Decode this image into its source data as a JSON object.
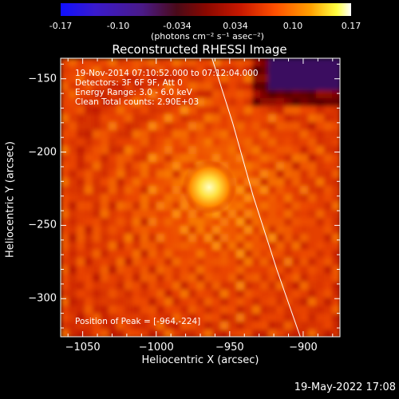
{
  "colorbar": {
    "ticks": [
      "-0.17",
      "-0.10",
      "-0.034",
      "0.034",
      "0.10",
      "0.17"
    ],
    "units": "(photons cm⁻² s⁻¹ asec⁻²)"
  },
  "chart_data": {
    "type": "heatmap",
    "title": "Reconstructed RHESSI Image",
    "xlabel": "Heliocentric X (arcsec)",
    "ylabel": "Heliocentric Y (arcsec)",
    "xlim": [
      -1065,
      -875
    ],
    "ylim": [
      -326,
      -136
    ],
    "xticks": [
      -1050,
      -1000,
      -950,
      -900
    ],
    "yticks": [
      -150,
      -200,
      -250,
      -300
    ],
    "xtick_labels": [
      "−1050",
      "−1000",
      "−950",
      "−900"
    ],
    "ytick_labels": [
      "−150",
      "−200",
      "−250",
      "−300"
    ],
    "color_range": [
      -0.17,
      0.17
    ],
    "peak": {
      "x": -964,
      "y": -224
    },
    "limb_line": [
      [
        -962,
        -136
      ],
      [
        -948,
        -180
      ],
      [
        -934,
        -230
      ],
      [
        -918,
        -280
      ],
      [
        -902,
        -326
      ]
    ]
  },
  "info": {
    "time": "19-Nov-2014 07:10:52.000 to 07:12:04.000",
    "detectors": "Detectors: 3F 6F 9F, Att 0",
    "energy": "Energy Range: 3.0 - 6.0 keV",
    "clean": "Clean     Total counts: 2.90E+03",
    "peak": "Position of Peak = [-964,-224]"
  },
  "footer": {
    "date": "19-May-2022 17:08"
  },
  "colors": {
    "background": "#000000",
    "axis": "#ffffff"
  }
}
